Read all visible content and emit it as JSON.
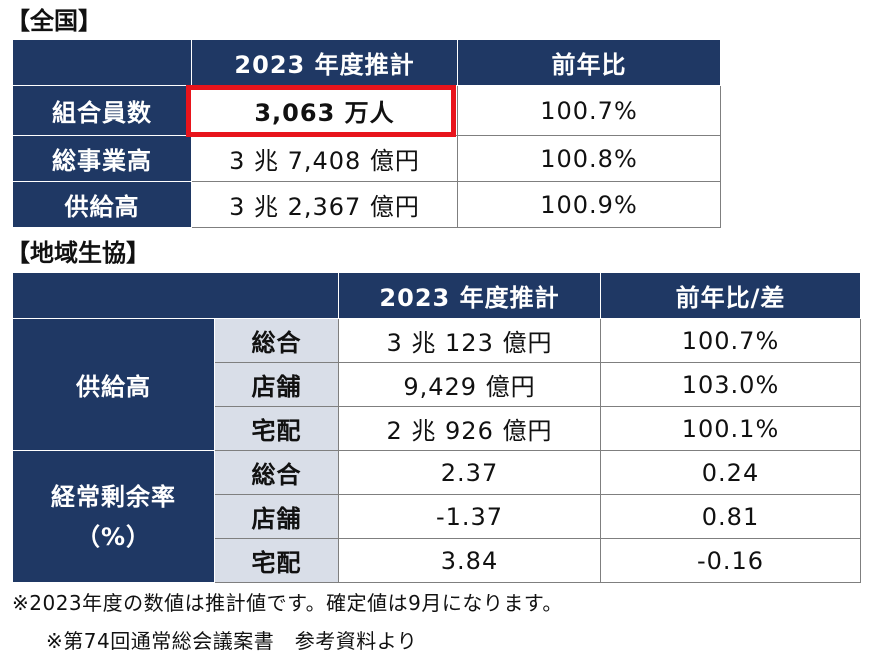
{
  "national": {
    "title": "【全国】",
    "columns": [
      "",
      "2023 年度推計",
      "前年比"
    ],
    "rows": [
      {
        "label": "組合員数",
        "estimate": "3,063 万人",
        "yoy": "100.7%"
      },
      {
        "label": "総事業高",
        "estimate": "3 兆 7,408 億円",
        "yoy": "100.8%"
      },
      {
        "label": "供給高",
        "estimate": "3 兆 2,367 億円",
        "yoy": "100.9%"
      }
    ]
  },
  "regional": {
    "title": "【地域生協】",
    "columns": [
      "",
      "2023 年度推計",
      "前年比/差"
    ],
    "groups": [
      {
        "label": "供給高",
        "label_line2": "",
        "rows": [
          {
            "sub": "総合",
            "estimate": "3 兆 123 億円",
            "diff": "100.7%"
          },
          {
            "sub": "店舗",
            "estimate": "9,429 億円",
            "diff": "103.0%"
          },
          {
            "sub": "宅配",
            "estimate": "2 兆 926 億円",
            "diff": "100.1%"
          }
        ]
      },
      {
        "label": "経常剰余率",
        "label_line2": "（%）",
        "rows": [
          {
            "sub": "総合",
            "estimate": "2.37",
            "diff": "0.24"
          },
          {
            "sub": "店舗",
            "estimate": "-1.37",
            "diff": "0.81"
          },
          {
            "sub": "宅配",
            "estimate": "3.84",
            "diff": "-0.16"
          }
        ]
      }
    ]
  },
  "notes": {
    "note1": "※2023年度の数値は推計値です。確定値は9月になります。",
    "note2": "※第74回通常総会議案書　参考資料より"
  },
  "colors": {
    "header_bg": "#1f3864",
    "subheader_bg": "#d9dee8",
    "highlight": "#e8141c"
  }
}
